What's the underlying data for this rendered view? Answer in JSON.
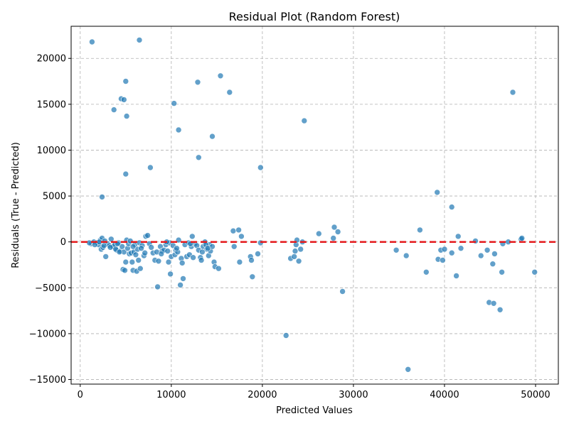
{
  "chart_data": {
    "type": "scatter",
    "title": "Residual Plot (Random Forest)",
    "xlabel": "Predicted Values",
    "ylabel": "Residuals (True - Predicted)",
    "xlim": [
      -1000,
      52500
    ],
    "ylim": [
      -15500,
      23500
    ],
    "xticks": [
      0,
      10000,
      20000,
      30000,
      40000,
      50000
    ],
    "yticks": [
      -15000,
      -10000,
      -5000,
      0,
      5000,
      10000,
      15000,
      20000
    ],
    "xtick_labels": [
      "0",
      "10000",
      "20000",
      "30000",
      "40000",
      "50000"
    ],
    "ytick_labels": [
      "−15000",
      "−10000",
      "−5000",
      "0",
      "5000",
      "10000",
      "15000",
      "20000"
    ],
    "grid": true,
    "marker_color": "#1f77b4",
    "reference_line": {
      "y": 0,
      "color": "#e41a1c",
      "style": "dashed"
    },
    "points": [
      [
        1300,
        21800
      ],
      [
        6500,
        22000
      ],
      [
        5000,
        17500
      ],
      [
        15400,
        18100
      ],
      [
        12900,
        17400
      ],
      [
        4500,
        15600
      ],
      [
        4800,
        15500
      ],
      [
        16400,
        16300
      ],
      [
        47500,
        16300
      ],
      [
        10300,
        15100
      ],
      [
        3700,
        14400
      ],
      [
        5100,
        13700
      ],
      [
        24600,
        13200
      ],
      [
        10800,
        12200
      ],
      [
        14500,
        11500
      ],
      [
        13000,
        9200
      ],
      [
        7700,
        8100
      ],
      [
        19800,
        8100
      ],
      [
        5000,
        7400
      ],
      [
        2400,
        4900
      ],
      [
        39200,
        5400
      ],
      [
        40800,
        3800
      ],
      [
        1200,
        -200
      ],
      [
        1500,
        0
      ],
      [
        1800,
        -100
      ],
      [
        2000,
        -300
      ],
      [
        2200,
        200
      ],
      [
        2300,
        -800
      ],
      [
        2400,
        400
      ],
      [
        2500,
        -600
      ],
      [
        2700,
        100
      ],
      [
        2800,
        -1600
      ],
      [
        3000,
        -200
      ],
      [
        3200,
        -400
      ],
      [
        3400,
        300
      ],
      [
        3600,
        -500
      ],
      [
        3800,
        -300
      ],
      [
        4000,
        -900
      ],
      [
        4200,
        -100
      ],
      [
        4400,
        -1000
      ],
      [
        4600,
        -500
      ],
      [
        4700,
        -3000
      ],
      [
        4800,
        -1100
      ],
      [
        4900,
        -3100
      ],
      [
        5000,
        -2200
      ],
      [
        5100,
        200
      ],
      [
        5200,
        -700
      ],
      [
        5300,
        -200
      ],
      [
        5400,
        -1300
      ],
      [
        5500,
        100
      ],
      [
        5600,
        -1200
      ],
      [
        5700,
        -2200
      ],
      [
        5800,
        -3100
      ],
      [
        5900,
        -1100
      ],
      [
        6000,
        -300
      ],
      [
        6100,
        -1400
      ],
      [
        6200,
        -3200
      ],
      [
        6300,
        -800
      ],
      [
        6400,
        -2000
      ],
      [
        6500,
        -100
      ],
      [
        6600,
        -2900
      ],
      [
        6800,
        -400
      ],
      [
        7000,
        -1500
      ],
      [
        7200,
        600
      ],
      [
        7400,
        700
      ],
      [
        7600,
        -200
      ],
      [
        7800,
        -600
      ],
      [
        8000,
        -1200
      ],
      [
        8200,
        -2000
      ],
      [
        8400,
        -1100
      ],
      [
        8500,
        -4900
      ],
      [
        8600,
        -2100
      ],
      [
        8800,
        -500
      ],
      [
        9000,
        -1000
      ],
      [
        9200,
        -900
      ],
      [
        9400,
        -300
      ],
      [
        9600,
        -1000
      ],
      [
        9700,
        -2200
      ],
      [
        9800,
        -100
      ],
      [
        9900,
        -3500
      ],
      [
        10000,
        -1600
      ],
      [
        10200,
        -400
      ],
      [
        10400,
        -1400
      ],
      [
        10500,
        -900
      ],
      [
        10700,
        -1100
      ],
      [
        10800,
        200
      ],
      [
        11000,
        -4700
      ],
      [
        11100,
        -1800
      ],
      [
        11200,
        -2300
      ],
      [
        11300,
        -4000
      ],
      [
        11500,
        -300
      ],
      [
        11700,
        -1600
      ],
      [
        11900,
        -100
      ],
      [
        12000,
        -1400
      ],
      [
        12200,
        -500
      ],
      [
        12300,
        600
      ],
      [
        12400,
        -1700
      ],
      [
        12600,
        -200
      ],
      [
        12800,
        -400
      ],
      [
        13000,
        -900
      ],
      [
        13200,
        -1700
      ],
      [
        13300,
        -2000
      ],
      [
        13500,
        -500
      ],
      [
        13700,
        0
      ],
      [
        13900,
        -800
      ],
      [
        14100,
        -1500
      ],
      [
        14200,
        -300
      ],
      [
        14300,
        -1000
      ],
      [
        14500,
        -500
      ],
      [
        14700,
        -2200
      ],
      [
        14800,
        -2700
      ],
      [
        15200,
        -2900
      ],
      [
        16800,
        1200
      ],
      [
        16900,
        -500
      ],
      [
        17400,
        1300
      ],
      [
        17500,
        -2200
      ],
      [
        17700,
        600
      ],
      [
        18700,
        -1600
      ],
      [
        18800,
        -2000
      ],
      [
        18900,
        -3800
      ],
      [
        19500,
        -1300
      ],
      [
        19800,
        -100
      ],
      [
        22600,
        -10200
      ],
      [
        23100,
        -1800
      ],
      [
        23500,
        -1600
      ],
      [
        23600,
        -1000
      ],
      [
        23700,
        -300
      ],
      [
        23800,
        200
      ],
      [
        24000,
        -2100
      ],
      [
        24200,
        -800
      ],
      [
        24400,
        0
      ],
      [
        26200,
        900
      ],
      [
        27800,
        400
      ],
      [
        27900,
        1600
      ],
      [
        28300,
        1100
      ],
      [
        28800,
        -5400
      ],
      [
        34700,
        -900
      ],
      [
        35800,
        -1500
      ],
      [
        36000,
        -13900
      ],
      [
        37300,
        1300
      ],
      [
        38000,
        -3300
      ],
      [
        39300,
        -1900
      ],
      [
        39600,
        -900
      ],
      [
        39800,
        -2000
      ],
      [
        40000,
        -800
      ],
      [
        40800,
        -1200
      ],
      [
        41300,
        -3700
      ],
      [
        41500,
        600
      ],
      [
        41800,
        -700
      ],
      [
        43400,
        100
      ],
      [
        44000,
        -1500
      ],
      [
        44700,
        -900
      ],
      [
        44900,
        -6600
      ],
      [
        45300,
        -2400
      ],
      [
        45400,
        -6700
      ],
      [
        45500,
        -1300
      ],
      [
        46100,
        -7400
      ],
      [
        46300,
        -3300
      ],
      [
        46400,
        -200
      ],
      [
        47000,
        0
      ],
      [
        48400,
        300
      ],
      [
        48500,
        400
      ],
      [
        49900,
        -3300
      ],
      [
        1000,
        -100
      ],
      [
        1600,
        -300
      ],
      [
        2100,
        0
      ],
      [
        2600,
        -400
      ],
      [
        3300,
        -600
      ],
      [
        3900,
        -800
      ],
      [
        4100,
        -200
      ],
      [
        4300,
        -1100
      ],
      [
        5800,
        -500
      ],
      [
        6700,
        -700
      ],
      [
        7100,
        -1200
      ],
      [
        8900,
        -1300
      ],
      [
        9500,
        0
      ],
      [
        10600,
        -700
      ],
      [
        12100,
        -200
      ],
      [
        13400,
        -1100
      ],
      [
        13800,
        -300
      ],
      [
        14000,
        -700
      ]
    ]
  }
}
